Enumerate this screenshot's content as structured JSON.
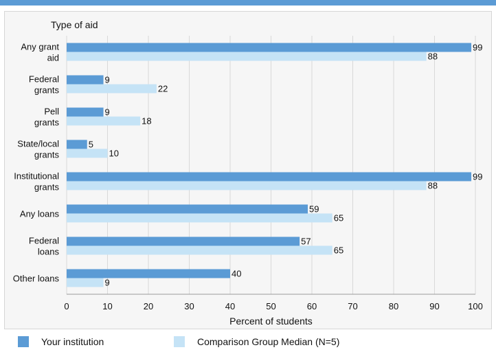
{
  "chart_data": {
    "type": "bar",
    "orientation": "horizontal",
    "ylabel": "Type of aid",
    "xlabel": "Percent of students",
    "xlim": [
      0,
      100
    ],
    "xticks": [
      0,
      10,
      20,
      30,
      40,
      50,
      60,
      70,
      80,
      90,
      100
    ],
    "grid": true,
    "legend_position": "bottom",
    "categories": [
      [
        "Any grant",
        "aid"
      ],
      [
        "Federal",
        "grants"
      ],
      [
        "Pell",
        "grants"
      ],
      [
        "State/local",
        "grants"
      ],
      [
        "Institutional",
        "grants"
      ],
      [
        "Any loans"
      ],
      [
        "Federal",
        "loans"
      ],
      [
        "Other loans"
      ]
    ],
    "series": [
      {
        "name": "Your institution",
        "color": "#5b9bd5",
        "values": [
          99,
          9,
          9,
          5,
          99,
          59,
          57,
          40
        ]
      },
      {
        "name": "Comparison Group Median (N=5)",
        "color": "#c5e3f6",
        "values": [
          88,
          22,
          18,
          10,
          88,
          65,
          65,
          9
        ]
      }
    ]
  }
}
